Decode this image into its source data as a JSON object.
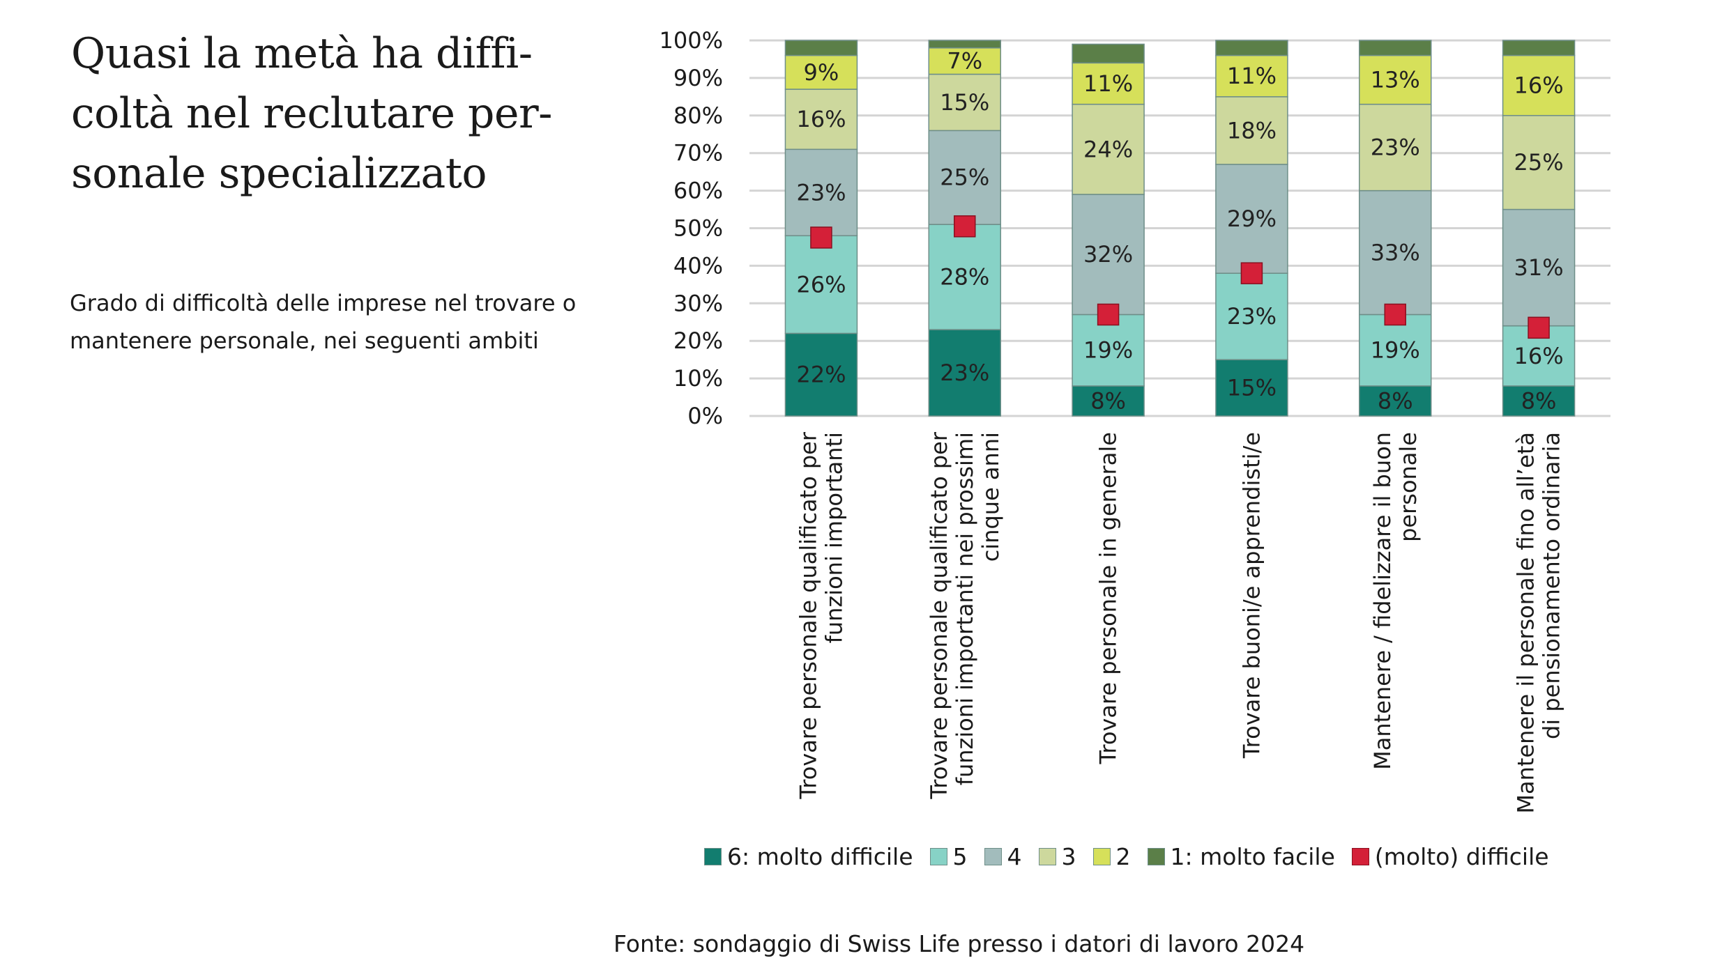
{
  "title": "Quasi la metà ha diffi-\ncoltà nel reclutare per-\nsonale specializzato",
  "subtitle": "Grado di difficoltà delle imprese nel trovare o\nmantenere personale, nei seguenti ambiti",
  "source": "Fonte: sondaggio di Swiss Life presso i datori di lavoro 2024",
  "chart_data": {
    "type": "bar",
    "stacked": true,
    "ylim": [
      0,
      100
    ],
    "yticks": [
      "0%",
      "10%",
      "20%",
      "30%",
      "40%",
      "50%",
      "60%",
      "70%",
      "80%",
      "90%",
      "100%"
    ],
    "grid": true,
    "legend_position": "bottom",
    "categories": [
      "Trovare personale qualificato per\nfunzioni importanti",
      "Trovare personale qualificato per\nfunzioni importanti nei prossimi\ncinque anni",
      "Trovare personale in generale",
      "Trovare buoni/e apprendisti/e",
      "Mantenere / fidelizzare il buon\npersonale",
      "Mantenere il personale fino all’età\ndi pensionamento ordinaria"
    ],
    "series": [
      {
        "name": "6: molto difficile",
        "color": "#127d6f",
        "values": [
          22,
          23,
          8,
          15,
          8,
          8
        ],
        "labels": [
          "22%",
          "23%",
          "8%",
          "15%",
          "8%",
          "8%"
        ]
      },
      {
        "name": "5",
        "color": "#87d2c6",
        "values": [
          26,
          28,
          19,
          23,
          19,
          16
        ],
        "labels": [
          "26%",
          "28%",
          "19%",
          "23%",
          "19%",
          "16%"
        ]
      },
      {
        "name": "4",
        "color": "#a2bcbc",
        "values": [
          23,
          25,
          32,
          29,
          33,
          31
        ],
        "labels": [
          "23%",
          "25%",
          "32%",
          "29%",
          "33%",
          "31%"
        ]
      },
      {
        "name": "3",
        "color": "#cdd89d",
        "values": [
          16,
          15,
          24,
          18,
          23,
          25
        ],
        "labels": [
          "16%",
          "15%",
          "24%",
          "18%",
          "23%",
          "25%"
        ]
      },
      {
        "name": "2",
        "color": "#d6e05a",
        "values": [
          9,
          7,
          11,
          11,
          13,
          16
        ],
        "labels": [
          "9%",
          "7%",
          "11%",
          "11%",
          "13%",
          "16%"
        ]
      },
      {
        "name": "1: molto facile",
        "color": "#5b7f48",
        "values": [
          4,
          2,
          5,
          4,
          4,
          4
        ],
        "labels": [
          "",
          "",
          "",
          "",
          "",
          ""
        ]
      }
    ],
    "markers": {
      "name": "(molto) difficile",
      "color": "#d42038",
      "values": [
        47.5,
        50.5,
        27,
        38,
        27,
        23.5
      ]
    }
  }
}
